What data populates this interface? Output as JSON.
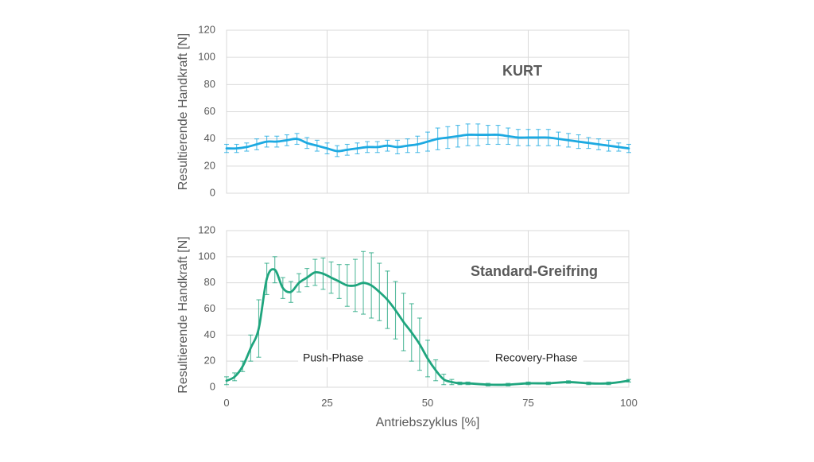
{
  "xlabel": "Antriebszyklus [%]",
  "colors": {
    "kurt": "#1ca9e1",
    "standard": "#1fa57e",
    "grid": "#d9d9d9",
    "text": "#595959"
  },
  "chart_data": [
    {
      "type": "line",
      "title": "KURT",
      "ylabel": "Resultierende Handkraft [N]",
      "xlim": [
        0,
        100
      ],
      "ylim": [
        0,
        120
      ],
      "xticks": [
        0,
        25,
        50,
        75,
        100
      ],
      "yticks": [
        0,
        20,
        40,
        60,
        80,
        100,
        120
      ],
      "xtick_labels": [
        "0",
        "25",
        "50",
        "75",
        "100"
      ],
      "ytick_labels": [
        "0",
        "20",
        "40",
        "60",
        "80",
        "100",
        "120"
      ],
      "grid": true,
      "series": [
        {
          "name": "KURT",
          "x": [
            0,
            2.5,
            5,
            7.5,
            10,
            12.5,
            15,
            17.5,
            20,
            22.5,
            25,
            27.5,
            30,
            32.5,
            35,
            37.5,
            40,
            42.5,
            45,
            47.5,
            50,
            52.5,
            55,
            57.5,
            60,
            62.5,
            65,
            67.5,
            70,
            72.5,
            75,
            77.5,
            80,
            82.5,
            85,
            87.5,
            90,
            92.5,
            95,
            97.5,
            100
          ],
          "values": [
            33,
            33,
            34,
            36,
            38,
            38,
            39,
            40,
            37,
            35,
            33,
            31,
            32,
            33,
            34,
            34,
            35,
            34,
            35,
            36,
            38,
            40,
            41,
            42,
            43,
            43,
            43,
            43,
            42,
            41,
            41,
            41,
            41,
            40,
            39,
            38,
            37,
            36,
            35,
            34,
            33
          ],
          "error": [
            3,
            3,
            3,
            4,
            4,
            4,
            4,
            4,
            4,
            4,
            4,
            4,
            4,
            4,
            4,
            4,
            4,
            5,
            5,
            6,
            7,
            8,
            8,
            8,
            8,
            8,
            7,
            7,
            6,
            6,
            6,
            6,
            6,
            5,
            5,
            5,
            4,
            4,
            4,
            3,
            3
          ]
        }
      ]
    },
    {
      "type": "line",
      "title": "Standard-Greifring",
      "ylabel": "Resultierende Handkraft [N]",
      "xlim": [
        0,
        100
      ],
      "ylim": [
        0,
        120
      ],
      "xticks": [
        0,
        25,
        50,
        75,
        100
      ],
      "yticks": [
        0,
        20,
        40,
        60,
        80,
        100,
        120
      ],
      "xtick_labels": [
        "0",
        "25",
        "50",
        "75",
        "100"
      ],
      "ytick_labels": [
        "0",
        "20",
        "40",
        "60",
        "80",
        "100",
        "120"
      ],
      "grid": true,
      "annotations": [
        {
          "text": "Push-Phase",
          "x": 26.5,
          "y": 22
        },
        {
          "text": "Recovery-Phase",
          "x": 77,
          "y": 22
        }
      ],
      "series": [
        {
          "name": "Standard-Greifring",
          "x": [
            0,
            2,
            4,
            6,
            8,
            10,
            12,
            14,
            16,
            18,
            20,
            22,
            24,
            26,
            28,
            30,
            32,
            34,
            36,
            38,
            40,
            42,
            44,
            46,
            48,
            50,
            52,
            54,
            56,
            58,
            60,
            65,
            70,
            75,
            80,
            85,
            90,
            95,
            100
          ],
          "values": [
            5,
            8,
            16,
            30,
            45,
            83,
            90,
            76,
            73,
            80,
            84,
            88,
            87,
            84,
            81,
            78,
            78,
            80,
            78,
            73,
            67,
            59,
            50,
            42,
            33,
            22,
            13,
            6,
            4,
            3,
            3,
            2,
            2,
            3,
            3,
            4,
            3,
            3,
            5
          ],
          "error": [
            3,
            3,
            4,
            10,
            22,
            12,
            10,
            8,
            8,
            7,
            7,
            10,
            12,
            12,
            13,
            16,
            20,
            24,
            25,
            22,
            22,
            22,
            22,
            22,
            20,
            14,
            8,
            4,
            2,
            1,
            1,
            1,
            1,
            1,
            1,
            1,
            1,
            1,
            1
          ]
        }
      ]
    }
  ]
}
